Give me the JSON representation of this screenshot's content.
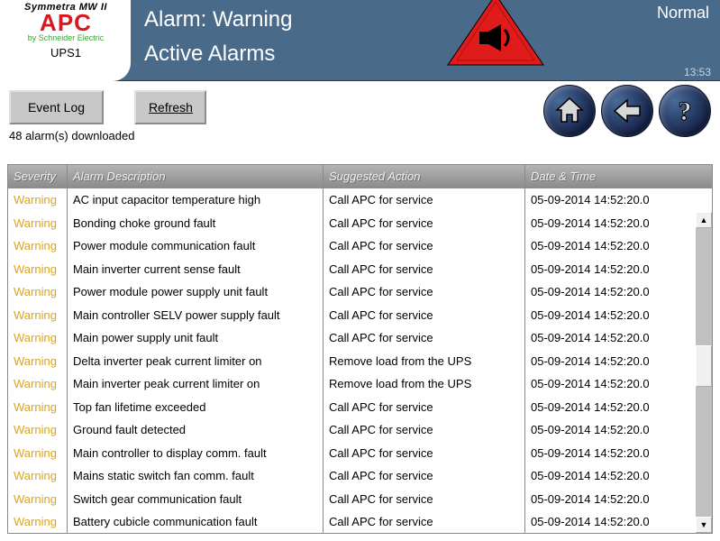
{
  "header": {
    "product_line": "Symmetra MW II",
    "brand": "APC",
    "by_line": "by Schneider Electric",
    "unit_id": "UPS1",
    "page_title": "Alarm: Warning",
    "page_subtitle": "Active Alarms",
    "system_status": "Normal",
    "clock": "13:53",
    "alarm_triangle_color": "#e01b1b",
    "header_bg": "#4a6a8a"
  },
  "toolbar": {
    "event_log_label": "Event Log",
    "refresh_label": "Refresh",
    "count_text": "48 alarm(s) downloaded"
  },
  "nav": {
    "home_title": "Home",
    "back_title": "Back",
    "help_title": "Help"
  },
  "table": {
    "columns": {
      "severity": "Severity",
      "description": "Alarm Description",
      "action": "Suggested Action",
      "datetime": "Date & Time"
    },
    "severity_color_warning": "#daa520",
    "rows": [
      {
        "sev": "Warning",
        "desc": "AC input capacitor temperature high",
        "act": "Call APC for service",
        "dt": "05-09-2014 14:52:20.0"
      },
      {
        "sev": "Warning",
        "desc": "Bonding choke ground fault",
        "act": "Call APC for service",
        "dt": "05-09-2014 14:52:20.0"
      },
      {
        "sev": "Warning",
        "desc": "Power module communication fault",
        "act": "Call APC for service",
        "dt": "05-09-2014 14:52:20.0"
      },
      {
        "sev": "Warning",
        "desc": "Main inverter current sense fault",
        "act": "Call APC for service",
        "dt": "05-09-2014 14:52:20.0"
      },
      {
        "sev": "Warning",
        "desc": "Power module power supply unit fault",
        "act": "Call APC for service",
        "dt": "05-09-2014 14:52:20.0"
      },
      {
        "sev": "Warning",
        "desc": "Main controller SELV power supply fault",
        "act": "Call APC for service",
        "dt": "05-09-2014 14:52:20.0"
      },
      {
        "sev": "Warning",
        "desc": "Main power supply unit fault",
        "act": "Call APC for service",
        "dt": "05-09-2014 14:52:20.0"
      },
      {
        "sev": "Warning",
        "desc": "Delta inverter peak current limiter on",
        "act": "Remove load from the UPS",
        "dt": "05-09-2014 14:52:20.0"
      },
      {
        "sev": "Warning",
        "desc": "Main inverter peak current limiter on",
        "act": "Remove load from the UPS",
        "dt": "05-09-2014 14:52:20.0"
      },
      {
        "sev": "Warning",
        "desc": "Top fan lifetime exceeded",
        "act": "Call APC for service",
        "dt": "05-09-2014 14:52:20.0"
      },
      {
        "sev": "Warning",
        "desc": "Ground fault detected",
        "act": "Call APC for service",
        "dt": "05-09-2014 14:52:20.0"
      },
      {
        "sev": "Warning",
        "desc": "Main controller to display comm. fault",
        "act": "Call APC for service",
        "dt": "05-09-2014 14:52:20.0"
      },
      {
        "sev": "Warning",
        "desc": "Mains static switch fan comm. fault",
        "act": "Call APC for service",
        "dt": "05-09-2014 14:52:20.0"
      },
      {
        "sev": "Warning",
        "desc": "Switch gear communication fault",
        "act": "Call APC for service",
        "dt": "05-09-2014 14:52:20.0"
      },
      {
        "sev": "Warning",
        "desc": "Battery cubicle communication fault",
        "act": "Call APC for service",
        "dt": "05-09-2014 14:52:20.0"
      }
    ]
  }
}
